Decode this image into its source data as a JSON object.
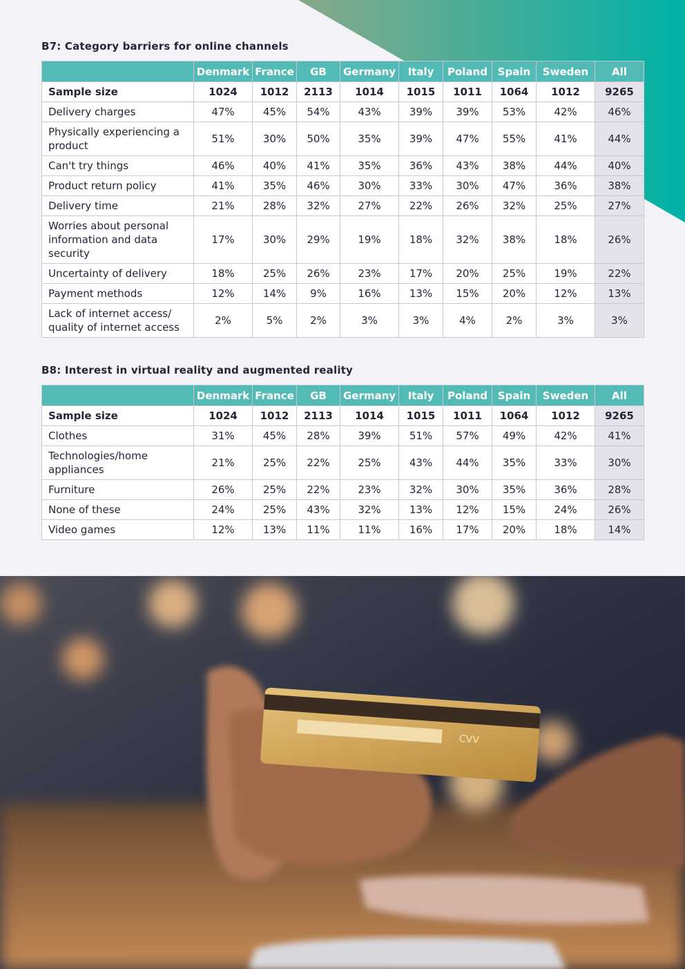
{
  "tables": [
    {
      "title": "B7: Category barriers for online channels",
      "columns": [
        "Denmark",
        "France",
        "GB",
        "Germany",
        "Italy",
        "Poland",
        "Spain",
        "Sweden",
        "All"
      ],
      "rows": [
        {
          "label": "Sample size",
          "values": [
            "1024",
            "1012",
            "2113",
            "1014",
            "1015",
            "1011",
            "1064",
            "1012",
            "9265"
          ]
        },
        {
          "label": "Delivery charges",
          "values": [
            "47%",
            "45%",
            "54%",
            "43%",
            "39%",
            "39%",
            "53%",
            "42%",
            "46%"
          ]
        },
        {
          "label": "Physically experiencing a product",
          "values": [
            "51%",
            "30%",
            "50%",
            "35%",
            "39%",
            "47%",
            "55%",
            "41%",
            "44%"
          ]
        },
        {
          "label": "Can't try things",
          "values": [
            "46%",
            "40%",
            "41%",
            "35%",
            "36%",
            "43%",
            "38%",
            "44%",
            "40%"
          ]
        },
        {
          "label": "Product return policy",
          "values": [
            "41%",
            "35%",
            "46%",
            "30%",
            "33%",
            "30%",
            "47%",
            "36%",
            "38%"
          ]
        },
        {
          "label": "Delivery time",
          "values": [
            "21%",
            "28%",
            "32%",
            "27%",
            "22%",
            "26%",
            "32%",
            "25%",
            "27%"
          ]
        },
        {
          "label": "Worries about personal information and data security",
          "values": [
            "17%",
            "30%",
            "29%",
            "19%",
            "18%",
            "32%",
            "38%",
            "18%",
            "26%"
          ]
        },
        {
          "label": "Uncertainty of delivery",
          "values": [
            "18%",
            "25%",
            "26%",
            "23%",
            "17%",
            "20%",
            "25%",
            "19%",
            "22%"
          ]
        },
        {
          "label": "Payment methods",
          "values": [
            "12%",
            "14%",
            "9%",
            "16%",
            "13%",
            "15%",
            "20%",
            "12%",
            "13%"
          ]
        },
        {
          "label": "Lack of internet access/ quality of internet access",
          "values": [
            "2%",
            "5%",
            "2%",
            "3%",
            "3%",
            "4%",
            "2%",
            "3%",
            "3%"
          ]
        }
      ]
    },
    {
      "title": "B8: Interest in virtual reality and augmented reality",
      "columns": [
        "Denmark",
        "France",
        "GB",
        "Germany",
        "Italy",
        "Poland",
        "Spain",
        "Sweden",
        "All"
      ],
      "rows": [
        {
          "label": "Sample size",
          "values": [
            "1024",
            "1012",
            "2113",
            "1014",
            "1015",
            "1011",
            "1064",
            "1012",
            "9265"
          ]
        },
        {
          "label": "Clothes",
          "values": [
            "31%",
            "45%",
            "28%",
            "39%",
            "51%",
            "57%",
            "49%",
            "42%",
            "41%"
          ]
        },
        {
          "label": "Technologies/home appliances",
          "values": [
            "21%",
            "25%",
            "22%",
            "25%",
            "43%",
            "44%",
            "35%",
            "33%",
            "30%"
          ]
        },
        {
          "label": "Furniture",
          "values": [
            "26%",
            "25%",
            "22%",
            "23%",
            "32%",
            "30%",
            "35%",
            "36%",
            "28%"
          ]
        },
        {
          "label": "None of these",
          "values": [
            "24%",
            "25%",
            "43%",
            "32%",
            "13%",
            "12%",
            "15%",
            "24%",
            "26%"
          ]
        },
        {
          "label": "Video games",
          "values": [
            "12%",
            "13%",
            "11%",
            "11%",
            "16%",
            "17%",
            "20%",
            "18%",
            "14%"
          ]
        }
      ]
    }
  ],
  "photo": {
    "card_label": "CVV"
  }
}
